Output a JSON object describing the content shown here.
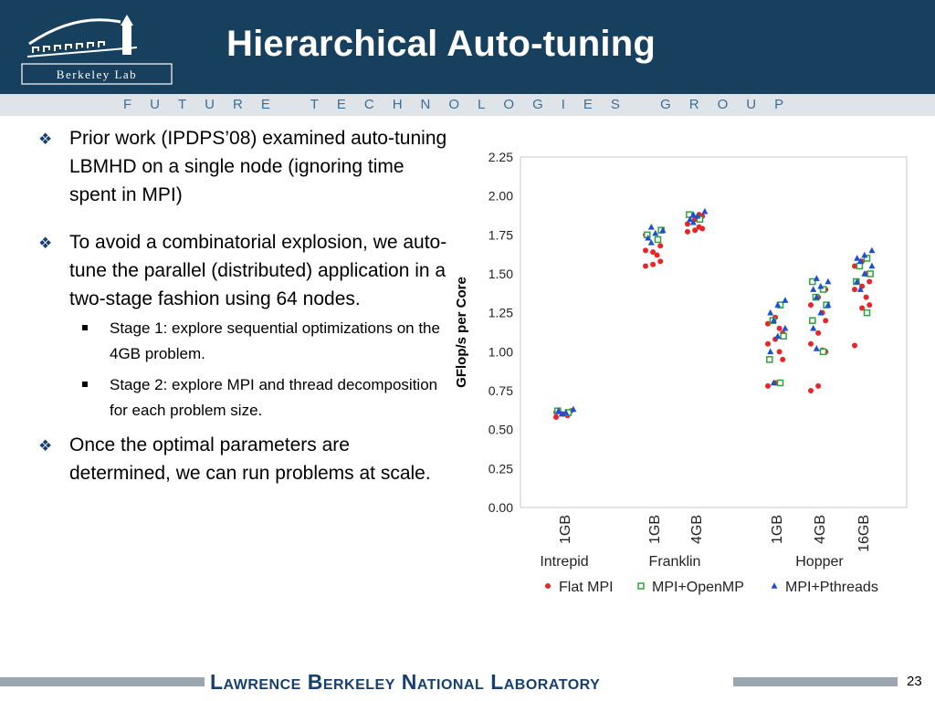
{
  "header": {
    "title": "Hierarchical Auto-tuning",
    "logo_text": "Berkeley Lab",
    "tagline": "FUTURE TECHNOLOGIES GROUP"
  },
  "bullets": [
    {
      "level": 1,
      "text": "Prior work (IPDPS’08) examined auto-tuning LBMHD on a single node (ignoring time spent in MPI)"
    },
    {
      "level": 1,
      "text": "To avoid a combinatorial explosion, we auto-tune the parallel (distributed) application in a two-stage fashion using 64 nodes."
    },
    {
      "level": 2,
      "text": "Stage 1: explore sequential optimizations on the 4GB problem."
    },
    {
      "level": 2,
      "text": "Stage 2: explore MPI and thread decomposition for each problem size."
    },
    {
      "level": 1,
      "text": "Once the optimal parameters are determined, we can run problems at scale."
    }
  ],
  "footer": {
    "lab_name": "Lawrence Berkeley National Laboratory",
    "slide_number": "23"
  },
  "chart_data": {
    "type": "scatter",
    "title": "",
    "xlabel": "",
    "ylabel": "GFlop/s per Core",
    "ylim": [
      0,
      2.25
    ],
    "yticks": [
      "0.00",
      "0.25",
      "0.50",
      "0.75",
      "1.00",
      "1.25",
      "1.50",
      "1.75",
      "2.00",
      "2.25"
    ],
    "grid": false,
    "legend_position": "bottom",
    "groups": [
      {
        "machine": "Intrepid",
        "sizes": [
          "1GB"
        ]
      },
      {
        "machine": "Franklin",
        "sizes": [
          "1GB",
          "4GB"
        ]
      },
      {
        "machine": "Hopper",
        "sizes": [
          "1GB",
          "4GB",
          "16GB"
        ]
      }
    ],
    "categories": [
      "Intrepid 1GB",
      "Franklin 1GB",
      "Franklin 4GB",
      "Hopper 1GB",
      "Hopper 4GB",
      "Hopper 16GB"
    ],
    "series": [
      {
        "name": "Flat MPI",
        "color": "#e8262a",
        "marker": "circle",
        "values": [
          [
            0.58,
            0.6,
            0.62,
            0.59,
            0.61
          ],
          [
            1.55,
            1.56,
            1.58,
            1.62,
            1.65,
            1.64,
            1.68,
            1.72,
            1.75
          ],
          [
            1.77,
            1.78,
            1.79,
            1.8,
            1.82,
            1.85,
            1.87,
            1.88
          ],
          [
            0.78,
            0.8,
            0.95,
            1.0,
            1.05,
            1.08,
            1.12,
            1.15,
            1.18,
            1.22
          ],
          [
            0.75,
            0.78,
            1.0,
            1.01,
            1.05,
            1.12,
            1.2,
            1.25,
            1.3,
            1.35,
            1.4
          ],
          [
            1.04,
            1.28,
            1.3,
            1.35,
            1.4,
            1.42,
            1.45,
            1.5,
            1.55,
            1.58
          ]
        ]
      },
      {
        "name": "MPI+OpenMP",
        "color": "#2ea33a",
        "marker": "square",
        "values": [
          [
            0.61,
            0.62
          ],
          [
            1.72,
            1.75,
            1.78
          ],
          [
            1.85,
            1.88
          ],
          [
            0.8,
            0.95,
            1.1,
            1.2,
            1.3
          ],
          [
            1.0,
            1.2,
            1.3,
            1.35,
            1.4,
            1.45
          ],
          [
            1.25,
            1.45,
            1.5,
            1.55,
            1.6
          ]
        ]
      },
      {
        "name": "MPI+Pthreads",
        "color": "#1f4fd1",
        "marker": "triangle",
        "values": [
          [
            0.6,
            0.62,
            0.61,
            0.63
          ],
          [
            1.7,
            1.73,
            1.76,
            1.78,
            1.8
          ],
          [
            1.83,
            1.85,
            1.87,
            1.9,
            1.88
          ],
          [
            0.8,
            1.0,
            1.1,
            1.15,
            1.2,
            1.25,
            1.3,
            1.33
          ],
          [
            1.02,
            1.15,
            1.25,
            1.3,
            1.35,
            1.4,
            1.42,
            1.45,
            1.47
          ],
          [
            1.4,
            1.45,
            1.5,
            1.55,
            1.58,
            1.6,
            1.62,
            1.65
          ]
        ]
      }
    ]
  }
}
